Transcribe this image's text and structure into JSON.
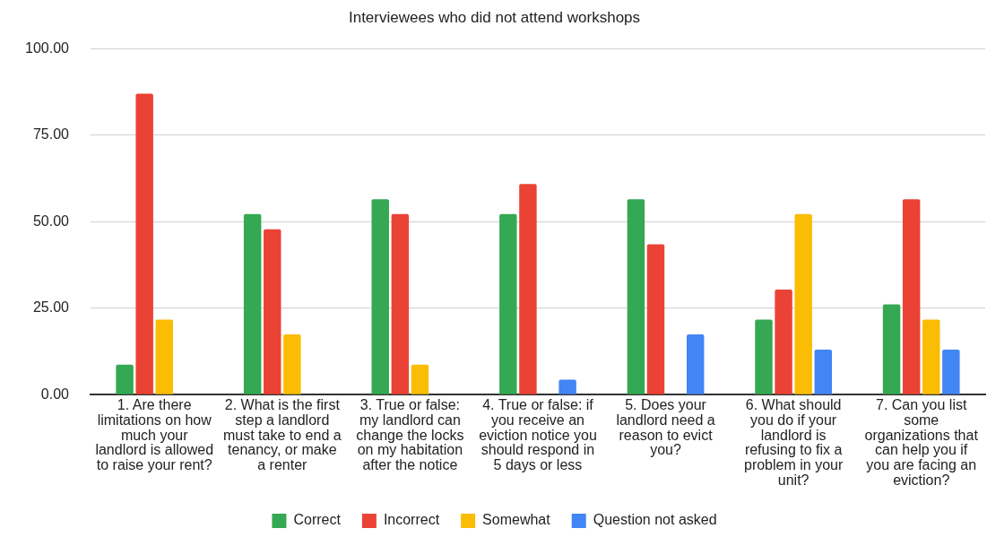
{
  "chart_data": {
    "type": "bar",
    "title": "Interviewees who did not attend workshops",
    "categories": [
      "1. Are there limitations on how much your landlord is allowed to raise your rent?",
      "2. What is the first step a landlord must take to end a tenancy, or make a renter",
      "3. True or false: my landlord can change the locks on my habitation after the notice",
      "4. True or false: if you receive an eviction notice you should respond in 5 days or less",
      "5. Does your landlord need a reason to evict you?",
      "6. What should you do if your landlord is refusing to fix a problem in your unit?",
      "7. Can you list some organizations that can help you if you are facing an eviction?"
    ],
    "series": [
      {
        "name": "Correct",
        "color": "#34a853",
        "values": [
          8.7,
          52.2,
          56.5,
          52.2,
          56.5,
          21.7,
          26.1
        ]
      },
      {
        "name": "Incorrect",
        "color": "#ea4335",
        "values": [
          87.0,
          47.8,
          52.2,
          60.9,
          43.5,
          30.4,
          56.5
        ]
      },
      {
        "name": "Somewhat",
        "color": "#fbbc04",
        "values": [
          21.7,
          17.4,
          8.7,
          null,
          null,
          52.2,
          21.7
        ]
      },
      {
        "name": "Question not asked",
        "color": "#4285f4",
        "values": [
          null,
          null,
          null,
          4.3,
          17.4,
          13.0,
          13.0
        ]
      }
    ],
    "ylim": [
      0,
      100
    ],
    "yticks": [
      {
        "value": 0,
        "label": "0.00"
      },
      {
        "value": 25,
        "label": "25.00"
      },
      {
        "value": 50,
        "label": "50.00"
      },
      {
        "value": 75,
        "label": "75.00"
      },
      {
        "value": 100,
        "label": "100.00"
      }
    ],
    "grid": "y",
    "legend": "bottom"
  }
}
